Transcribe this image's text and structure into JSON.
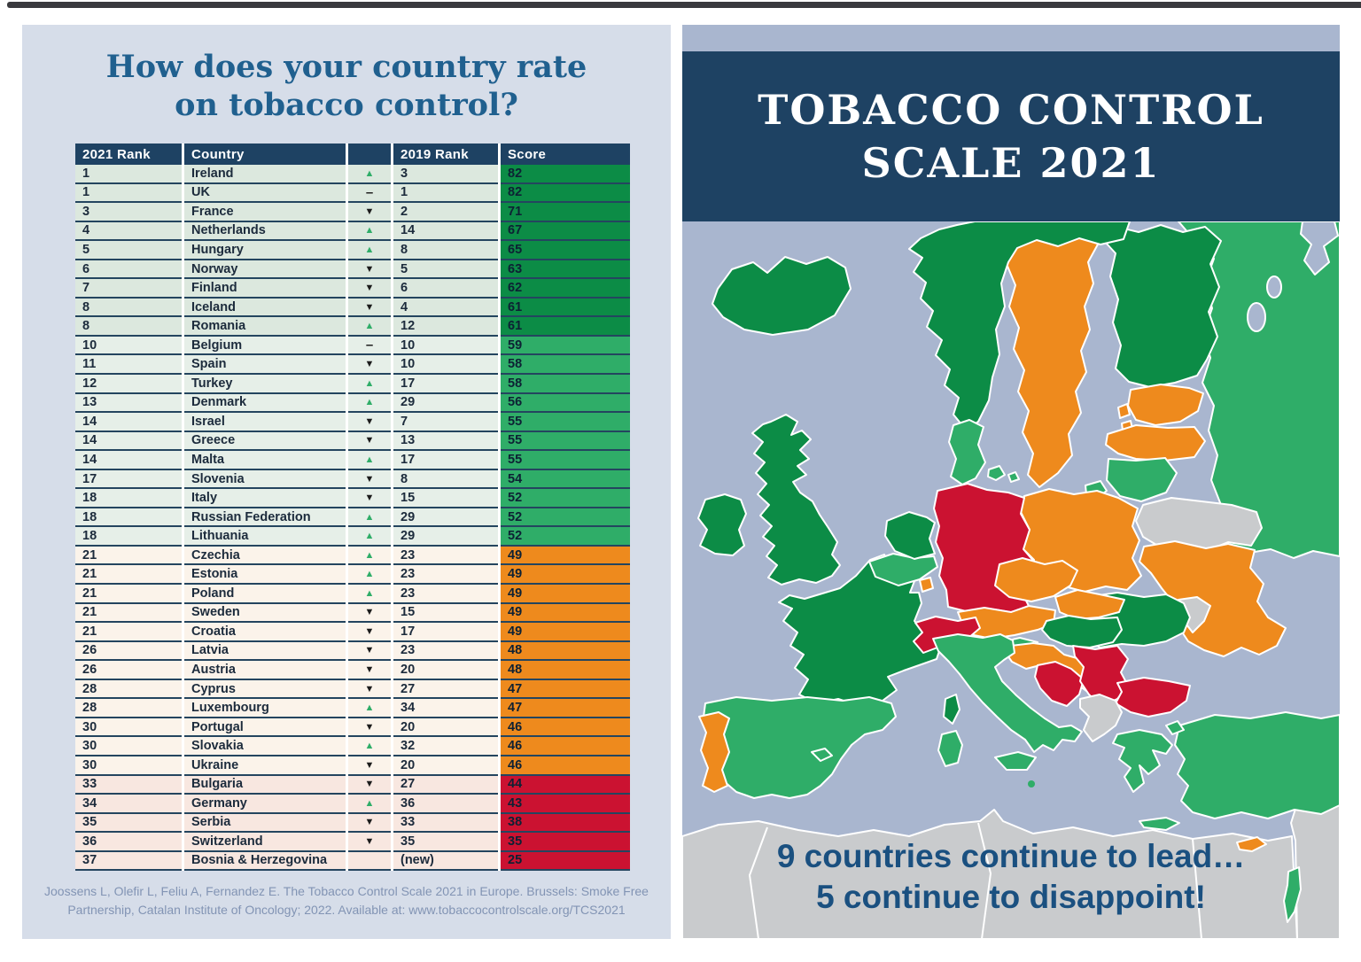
{
  "palette": {
    "dark-green": "#0c8c46",
    "medium-green": "#2fad68",
    "orange": "#ee8a1d",
    "red": "#cb1231",
    "gray": "#c9cbcd",
    "sea": "#a9b6cf",
    "navy": "#1e4263",
    "title-blue": "#20608f",
    "caption-blue": "#1a5080"
  },
  "left_panel": {
    "title_line1": "How does your country rate",
    "title_line2": "on tobacco control?",
    "table": {
      "headers": {
        "rank2021": "2021 Rank",
        "country": "Country",
        "trend": "",
        "rank2019": "2019 Rank",
        "score": "Score"
      },
      "rows": [
        {
          "rank": "1",
          "country": "Ireland",
          "trend": "up",
          "rank_2019": "3",
          "score": "82",
          "group": "dark-green"
        },
        {
          "rank": "1",
          "country": "UK",
          "trend": "same",
          "rank_2019": "1",
          "score": "82",
          "group": "dark-green"
        },
        {
          "rank": "3",
          "country": "France",
          "trend": "down",
          "rank_2019": "2",
          "score": "71",
          "group": "dark-green"
        },
        {
          "rank": "4",
          "country": "Netherlands",
          "trend": "up",
          "rank_2019": "14",
          "score": "67",
          "group": "dark-green"
        },
        {
          "rank": "5",
          "country": "Hungary",
          "trend": "up",
          "rank_2019": "8",
          "score": "65",
          "group": "dark-green"
        },
        {
          "rank": "6",
          "country": "Norway",
          "trend": "down",
          "rank_2019": "5",
          "score": "63",
          "group": "dark-green"
        },
        {
          "rank": "7",
          "country": "Finland",
          "trend": "down",
          "rank_2019": "6",
          "score": "62",
          "group": "dark-green"
        },
        {
          "rank": "8",
          "country": "Iceland",
          "trend": "down",
          "rank_2019": "4",
          "score": "61",
          "group": "dark-green"
        },
        {
          "rank": "8",
          "country": "Romania",
          "trend": "up",
          "rank_2019": "12",
          "score": "61",
          "group": "dark-green"
        },
        {
          "rank": "10",
          "country": "Belgium",
          "trend": "same",
          "rank_2019": "10",
          "score": "59",
          "group": "medium-green"
        },
        {
          "rank": "11",
          "country": "Spain",
          "trend": "down",
          "rank_2019": "10",
          "score": "58",
          "group": "medium-green"
        },
        {
          "rank": "12",
          "country": "Turkey",
          "trend": "up",
          "rank_2019": "17",
          "score": "58",
          "group": "medium-green"
        },
        {
          "rank": "13",
          "country": "Denmark",
          "trend": "up",
          "rank_2019": "29",
          "score": "56",
          "group": "medium-green"
        },
        {
          "rank": "14",
          "country": "Israel",
          "trend": "down",
          "rank_2019": "7",
          "score": "55",
          "group": "medium-green"
        },
        {
          "rank": "14",
          "country": "Greece",
          "trend": "down",
          "rank_2019": "13",
          "score": "55",
          "group": "medium-green"
        },
        {
          "rank": "14",
          "country": "Malta",
          "trend": "up",
          "rank_2019": "17",
          "score": "55",
          "group": "medium-green"
        },
        {
          "rank": "17",
          "country": "Slovenia",
          "trend": "down",
          "rank_2019": "8",
          "score": "54",
          "group": "medium-green"
        },
        {
          "rank": "18",
          "country": "Italy",
          "trend": "down",
          "rank_2019": "15",
          "score": "52",
          "group": "medium-green"
        },
        {
          "rank": "18",
          "country": "Russian Federation",
          "trend": "up",
          "rank_2019": "29",
          "score": "52",
          "group": "medium-green"
        },
        {
          "rank": "18",
          "country": "Lithuania",
          "trend": "up",
          "rank_2019": "29",
          "score": "52",
          "group": "medium-green"
        },
        {
          "rank": "21",
          "country": "Czechia",
          "trend": "up",
          "rank_2019": "23",
          "score": "49",
          "group": "orange"
        },
        {
          "rank": "21",
          "country": "Estonia",
          "trend": "up",
          "rank_2019": "23",
          "score": "49",
          "group": "orange"
        },
        {
          "rank": "21",
          "country": "Poland",
          "trend": "up",
          "rank_2019": "23",
          "score": "49",
          "group": "orange"
        },
        {
          "rank": "21",
          "country": "Sweden",
          "trend": "down",
          "rank_2019": "15",
          "score": "49",
          "group": "orange"
        },
        {
          "rank": "21",
          "country": "Croatia",
          "trend": "down",
          "rank_2019": "17",
          "score": "49",
          "group": "orange"
        },
        {
          "rank": "26",
          "country": "Latvia",
          "trend": "down",
          "rank_2019": "23",
          "score": "48",
          "group": "orange"
        },
        {
          "rank": "26",
          "country": "Austria",
          "trend": "down",
          "rank_2019": "20",
          "score": "48",
          "group": "orange"
        },
        {
          "rank": "28",
          "country": "Cyprus",
          "trend": "down",
          "rank_2019": "27",
          "score": "47",
          "group": "orange"
        },
        {
          "rank": "28",
          "country": "Luxembourg",
          "trend": "up",
          "rank_2019": "34",
          "score": "47",
          "group": "orange"
        },
        {
          "rank": "30",
          "country": "Portugal",
          "trend": "down",
          "rank_2019": "20",
          "score": "46",
          "group": "orange"
        },
        {
          "rank": "30",
          "country": "Slovakia",
          "trend": "up",
          "rank_2019": "32",
          "score": "46",
          "group": "orange"
        },
        {
          "rank": "30",
          "country": "Ukraine",
          "trend": "down",
          "rank_2019": "20",
          "score": "46",
          "group": "orange"
        },
        {
          "rank": "33",
          "country": "Bulgaria",
          "trend": "down",
          "rank_2019": "27",
          "score": "44",
          "group": "red"
        },
        {
          "rank": "34",
          "country": "Germany",
          "trend": "up",
          "rank_2019": "36",
          "score": "43",
          "group": "red"
        },
        {
          "rank": "35",
          "country": "Serbia",
          "trend": "down",
          "rank_2019": "33",
          "score": "38",
          "group": "red"
        },
        {
          "rank": "36",
          "country": "Switzerland",
          "trend": "down",
          "rank_2019": "35",
          "score": "35",
          "group": "red"
        },
        {
          "rank": "37",
          "country": "Bosnia & Herzegovina",
          "trend": "none",
          "rank_2019": "(new)",
          "score": "25",
          "group": "red"
        }
      ]
    },
    "citation_line1": "Joossens L, Olefir L, Feliu A, Fernandez E. The Tobacco Control Scale 2021 in Europe. Brussels: Smoke Free",
    "citation_line2": "Partnership, Catalan Institute of Oncology; 2022. Available at: www.tobaccocontrolscale.org/TCS2021"
  },
  "right_panel": {
    "title_line1": "TOBACCO CONTROL",
    "title_line2": "SCALE 2021",
    "caption_line1": "9 countries continue to lead…",
    "caption_line2": "5 continue to disappoint!",
    "map": {
      "countries": {
        "iceland": "dark-green",
        "norway": "dark-green",
        "sweden": "orange",
        "finland": "dark-green",
        "russia": "medium-green",
        "kaliningrad": "medium-green",
        "estonia": "orange",
        "latvia": "orange",
        "lithuania": "medium-green",
        "belarus": "gray",
        "uk": "dark-green",
        "ireland": "dark-green",
        "denmark": "medium-green",
        "netherlands": "dark-green",
        "belgium": "medium-green",
        "luxembourg": "orange",
        "germany": "red",
        "poland": "orange",
        "czechia": "orange",
        "slovakia": "orange",
        "austria": "orange",
        "switzerland": "red",
        "france": "dark-green",
        "corsica": "dark-green",
        "hungary": "dark-green",
        "slovenia": "medium-green",
        "croatia": "orange",
        "bosnia": "red",
        "serbia": "red",
        "romania": "dark-green",
        "bulgaria": "red",
        "moldova": "gray",
        "ukraine": "orange",
        "albania-region": "gray",
        "greece": "medium-green",
        "crete": "medium-green",
        "turkey": "medium-green",
        "turkey-thrace": "medium-green",
        "cyprus": "orange",
        "israel": "medium-green",
        "italy": "medium-green",
        "sicily": "medium-green",
        "sardinia": "medium-green",
        "malta": "medium-green",
        "balearic-islands": "medium-green",
        "spain": "medium-green",
        "portugal": "orange",
        "north-africa": "gray",
        "middle-east": "gray"
      }
    }
  }
}
